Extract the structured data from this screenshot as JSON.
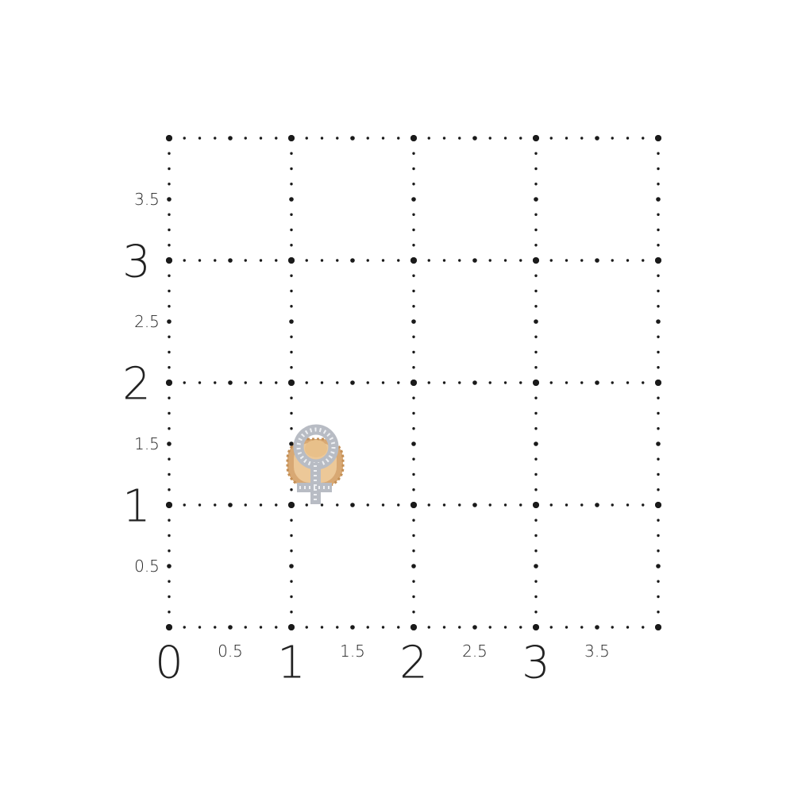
{
  "grid": {
    "unit": "cm",
    "x_range": [
      0,
      4
    ],
    "y_range": [
      0,
      4
    ],
    "x_labels_major": [
      "0",
      "1",
      "2",
      "3"
    ],
    "x_labels_minor": [
      "0.5",
      "1.5",
      "2.5",
      "3.5"
    ],
    "y_labels_major": [
      "1",
      "2",
      "3"
    ],
    "y_labels_minor": [
      "0.5",
      "1.5",
      "2.5",
      "3.5"
    ],
    "dot_color": "#1a1a1a"
  },
  "product": {
    "type": "earring",
    "shape": "female-symbol",
    "metal_color": "#e2b98a",
    "stone_color": "#c9ccd2",
    "width": 0.45,
    "height": 0.6,
    "position": [
      1.2,
      1.3
    ]
  }
}
